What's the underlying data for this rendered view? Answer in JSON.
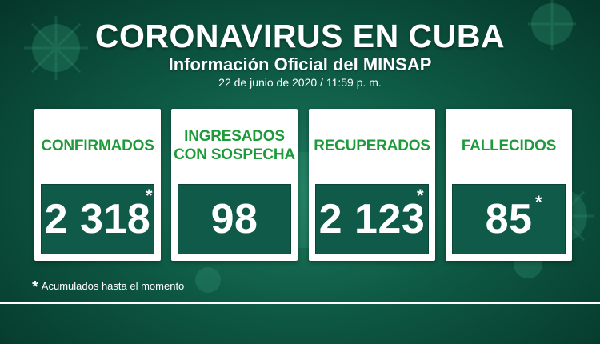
{
  "header": {
    "title": "CORONAVIRUS EN CUBA",
    "subtitle": "Información Oficial del MINSAP",
    "date": "22 de junio de 2020 / 11:59 p. m."
  },
  "cards": [
    {
      "label_lines": [
        "CONFIRMADOS"
      ],
      "value": "2 318",
      "asterisk": "*"
    },
    {
      "label_lines": [
        "INGRESADOS",
        "CON SOSPECHA"
      ],
      "value": "98",
      "asterisk": ""
    },
    {
      "label_lines": [
        "RECUPERADOS"
      ],
      "value": "2 123",
      "asterisk": "*"
    },
    {
      "label_lines": [
        "FALLECIDOS"
      ],
      "value": "85",
      "asterisk": "*"
    }
  ],
  "footnote": {
    "star": "*",
    "text": "Acumulados hasta el momento"
  },
  "colors": {
    "label_green": "#1e9a3a",
    "value_bg": "#0f5a49",
    "background": "#0e5a44"
  }
}
